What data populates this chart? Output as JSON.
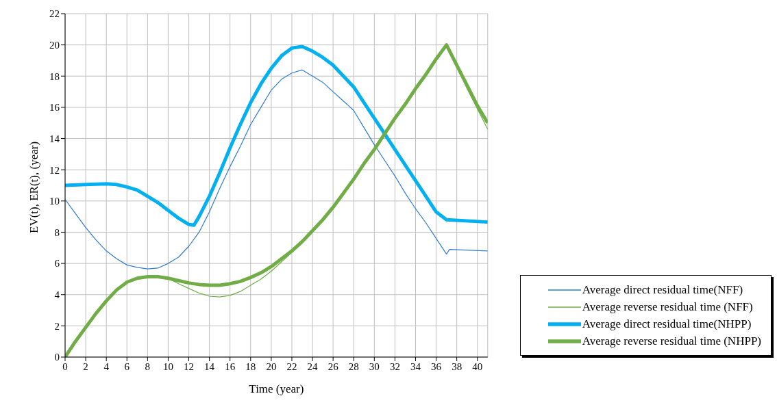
{
  "chart_data": {
    "type": "line",
    "xlabel": "Time (year)",
    "ylabel": "EV(t), ER(t), (year)",
    "xlim": [
      0,
      41
    ],
    "xticks": [
      0,
      2,
      4,
      6,
      8,
      10,
      12,
      14,
      16,
      18,
      20,
      22,
      24,
      26,
      28,
      30,
      32,
      34,
      36,
      38,
      40
    ],
    "ylim": [
      0,
      22
    ],
    "yticks": [
      0,
      2,
      4,
      6,
      8,
      10,
      12,
      14,
      16,
      18,
      20,
      22
    ],
    "grid": true,
    "legend": "bottom right",
    "marker": "none",
    "line_style": "solid",
    "series": [
      {
        "name": "Average direct residual time(NFF)",
        "color": "#2e7bcf",
        "x": [
          0,
          1,
          2,
          3,
          4,
          5,
          6,
          7,
          8,
          9,
          10,
          11,
          12,
          13,
          14,
          15,
          16,
          17,
          18,
          19,
          20,
          21,
          22,
          23,
          24,
          25,
          26,
          27,
          28,
          29,
          30,
          31,
          32,
          33,
          34,
          35,
          36,
          37,
          37.3,
          41
        ],
        "values": [
          10.1,
          9.2,
          8.3,
          7.5,
          6.8,
          6.3,
          5.9,
          5.75,
          5.65,
          5.7,
          6.0,
          6.4,
          7.1,
          8.0,
          9.3,
          10.8,
          12.2,
          13.5,
          14.9,
          16.0,
          17.1,
          17.8,
          18.2,
          18.4,
          18.0,
          17.6,
          17.0,
          16.4,
          15.8,
          14.7,
          13.6,
          12.6,
          11.6,
          10.5,
          9.5,
          8.6,
          7.6,
          6.6,
          6.9,
          6.8
        ]
      },
      {
        "name": "Average reverse residual time (NFF)",
        "color": "#70ad47",
        "x": [
          0,
          1,
          2,
          3,
          4,
          5,
          6,
          7,
          8,
          9,
          10,
          11,
          12,
          13,
          14,
          15,
          16,
          17,
          18,
          19,
          20,
          21,
          22,
          23,
          24,
          25,
          26,
          27,
          28,
          29,
          30,
          31,
          32,
          33,
          34,
          35,
          36,
          37,
          38,
          39,
          40,
          41
        ],
        "values": [
          0,
          1.0,
          1.9,
          2.8,
          3.6,
          4.3,
          4.8,
          5.05,
          5.15,
          5.15,
          5.05,
          4.7,
          4.4,
          4.1,
          3.9,
          3.85,
          3.95,
          4.2,
          4.6,
          5.0,
          5.5,
          6.1,
          6.7,
          7.3,
          8.0,
          8.8,
          9.6,
          10.5,
          11.4,
          12.4,
          13.3,
          14.3,
          15.3,
          16.2,
          17.2,
          18.1,
          19.1,
          20.0,
          18.6,
          17.2,
          15.9,
          14.6
        ]
      },
      {
        "name": "Average direct residual time(NHPP)",
        "color": "#00b0f0",
        "x": [
          0,
          2,
          4,
          5,
          6,
          7,
          8,
          9,
          10,
          11,
          12,
          12.5,
          13,
          14,
          15,
          16,
          17,
          18,
          19,
          20,
          21,
          22,
          23,
          24,
          25,
          26,
          27,
          28,
          29,
          30,
          31,
          32,
          33,
          34,
          35,
          36,
          37,
          41
        ],
        "values": [
          11.0,
          11.05,
          11.1,
          11.05,
          10.9,
          10.7,
          10.3,
          9.9,
          9.4,
          8.9,
          8.5,
          8.45,
          9.0,
          10.3,
          11.8,
          13.4,
          14.9,
          16.3,
          17.5,
          18.5,
          19.3,
          19.8,
          19.9,
          19.6,
          19.2,
          18.7,
          18.0,
          17.3,
          16.3,
          15.3,
          14.3,
          13.3,
          12.3,
          11.3,
          10.3,
          9.3,
          8.8,
          8.65
        ]
      },
      {
        "name": "Average reverse residual time (NHPP)",
        "color": "#70ad47",
        "x": [
          0,
          1,
          2,
          3,
          4,
          5,
          6,
          7,
          8,
          9,
          10,
          11,
          12,
          13,
          14,
          15,
          16,
          17,
          18,
          19,
          20,
          21,
          22,
          23,
          24,
          25,
          26,
          27,
          28,
          29,
          30,
          31,
          32,
          33,
          34,
          35,
          36,
          37,
          38,
          39,
          40,
          41
        ],
        "values": [
          0,
          1.0,
          1.9,
          2.8,
          3.6,
          4.3,
          4.8,
          5.05,
          5.15,
          5.15,
          5.05,
          4.9,
          4.75,
          4.65,
          4.6,
          4.6,
          4.7,
          4.85,
          5.1,
          5.4,
          5.8,
          6.3,
          6.8,
          7.4,
          8.1,
          8.8,
          9.6,
          10.5,
          11.4,
          12.4,
          13.3,
          14.3,
          15.3,
          16.2,
          17.2,
          18.1,
          19.1,
          20.0,
          18.7,
          17.4,
          16.1,
          15.0
        ]
      }
    ]
  }
}
